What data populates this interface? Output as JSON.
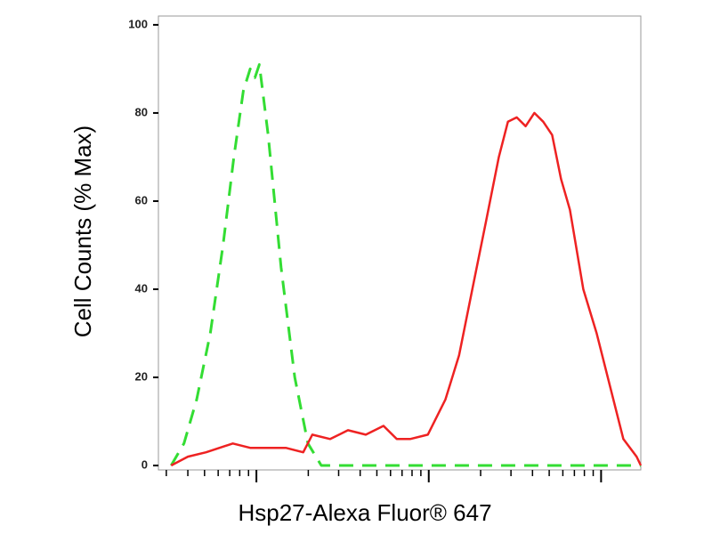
{
  "chart_data": {
    "type": "line",
    "xlabel": "Hsp27-Alexa Fluor® 647",
    "ylabel": "Cell Counts (% Max)",
    "xscale": "log",
    "xlim": [
      27,
      17000
    ],
    "ylim": [
      -1,
      102
    ],
    "xticks": [
      100,
      1000,
      10000
    ],
    "xminorticks": [
      30,
      40,
      50,
      60,
      70,
      80,
      90,
      200,
      300,
      400,
      500,
      600,
      700,
      800,
      900,
      2000,
      3000,
      4000,
      5000,
      6000,
      7000,
      8000,
      9000
    ],
    "yticks": [
      0,
      20,
      40,
      60,
      80,
      100
    ],
    "series": [
      {
        "color": "#33dd33",
        "dash": true,
        "x": [
          32,
          38,
          45,
          54,
          64,
          74,
          84,
          92,
          98,
          104,
          117,
          139,
          167,
          199,
          238,
          301,
          17000
        ],
        "values": [
          0,
          5,
          15,
          30,
          50,
          70,
          85,
          90,
          88,
          91,
          75,
          45,
          20,
          5,
          0,
          0,
          0
        ]
      },
      {
        "color": "#ee2222",
        "dash": false,
        "x": [
          32,
          40,
          51,
          73,
          92,
          117,
          148,
          187,
          211,
          268,
          340,
          431,
          546,
          652,
          780,
          988,
          1250,
          1500,
          1790,
          2140,
          2550,
          2880,
          3240,
          3650,
          4100,
          4620,
          5200,
          5860,
          6600,
          7890,
          9420,
          11270,
          13460,
          16070,
          17000
        ],
        "values": [
          0,
          2,
          3,
          5,
          4,
          4,
          4,
          3,
          7,
          6,
          8,
          7,
          9,
          6,
          6,
          7,
          15,
          25,
          40,
          55,
          70,
          78,
          79,
          77,
          80,
          78,
          75,
          65,
          58,
          40,
          30,
          18,
          6,
          2,
          0
        ]
      }
    ]
  }
}
